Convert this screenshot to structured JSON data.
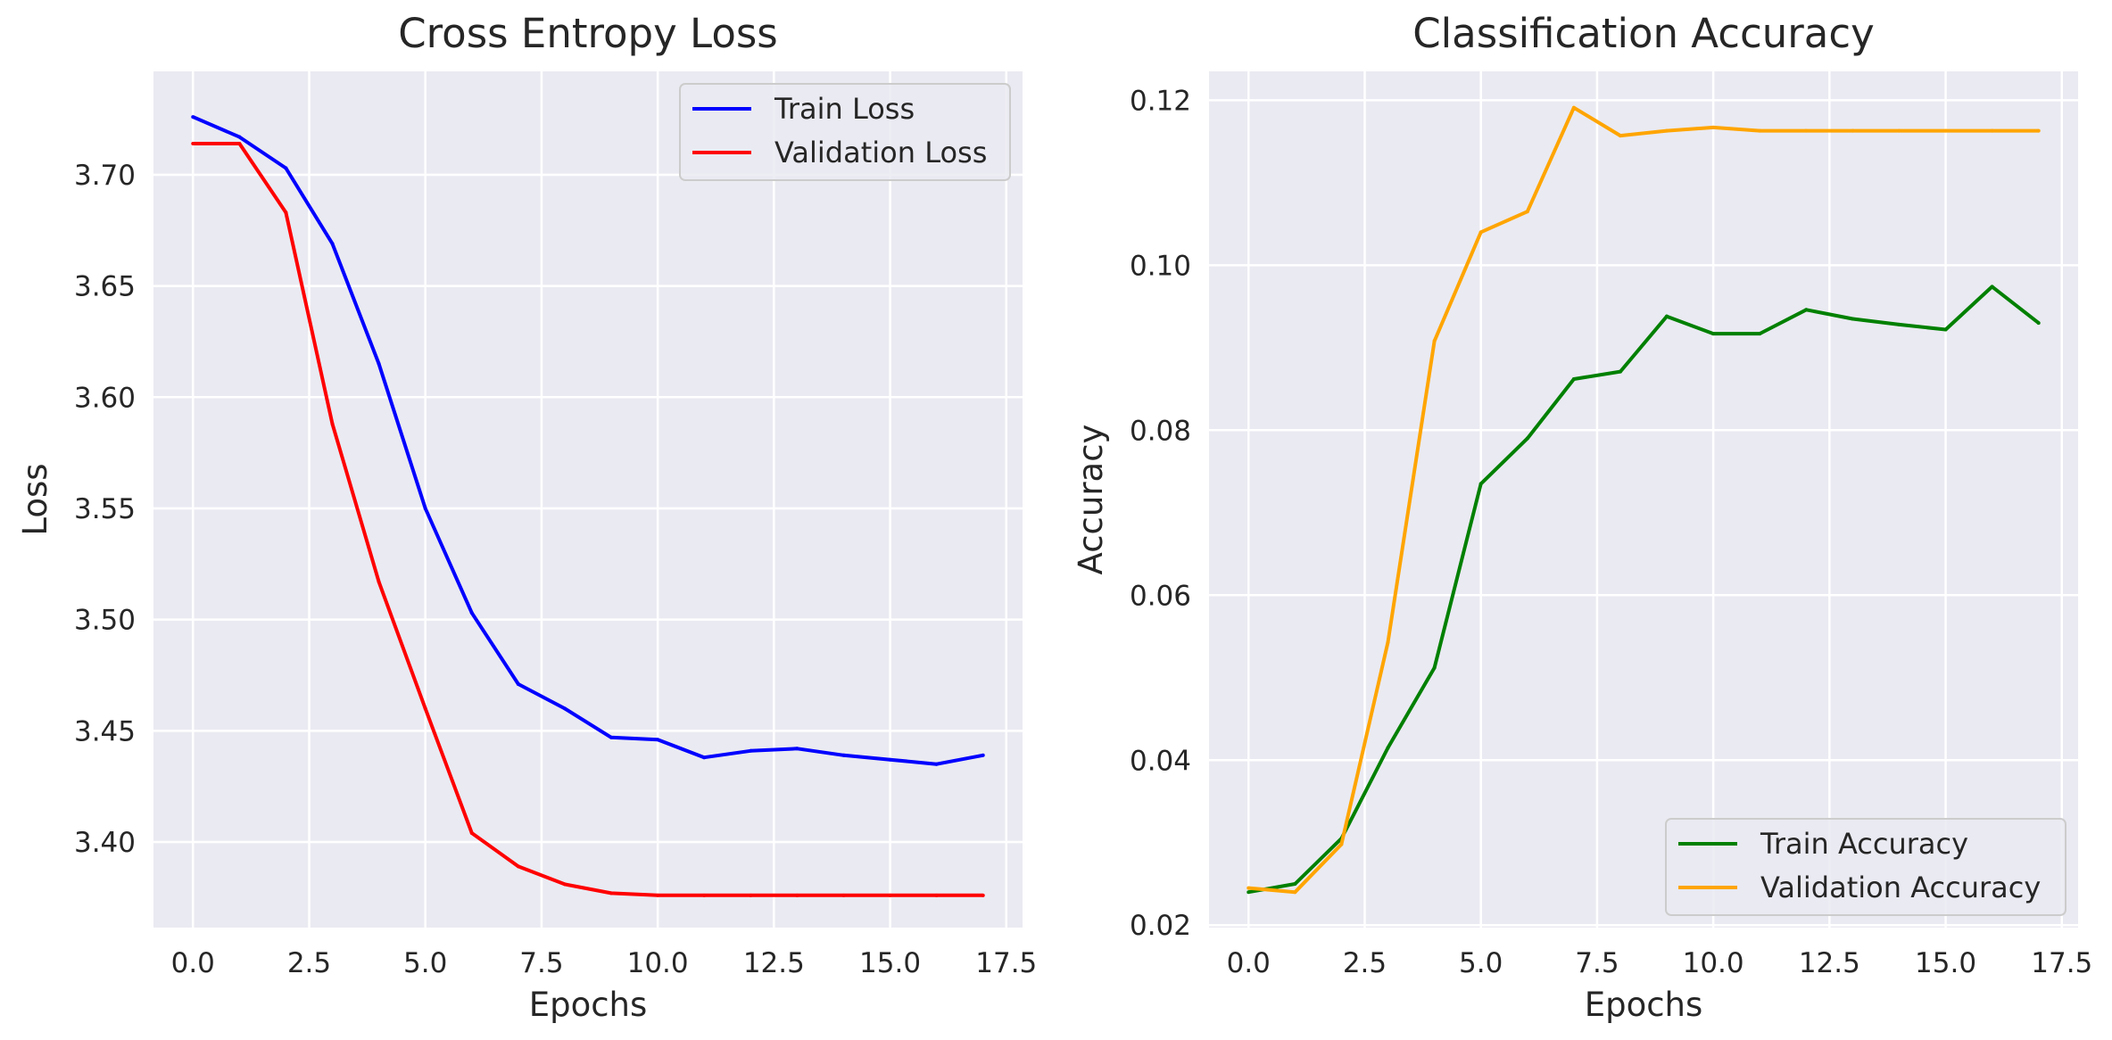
{
  "chart_data": [
    {
      "type": "line",
      "title": "Cross Entropy Loss",
      "xlabel": "Epochs",
      "ylabel": "Loss",
      "xlim": [
        -0.85,
        17.85
      ],
      "ylim": [
        3.3615,
        3.7465
      ],
      "xticks": [
        0.0,
        2.5,
        5.0,
        7.5,
        10.0,
        12.5,
        15.0,
        17.5
      ],
      "xtick_labels": [
        "0.0",
        "2.5",
        "5.0",
        "7.5",
        "10.0",
        "12.5",
        "15.0",
        "17.5"
      ],
      "yticks": [
        3.4,
        3.45,
        3.5,
        3.55,
        3.6,
        3.65,
        3.7
      ],
      "ytick_labels": [
        "3.40",
        "3.45",
        "3.50",
        "3.55",
        "3.60",
        "3.65",
        "3.70"
      ],
      "grid": true,
      "legend_position": "upper right",
      "x": [
        0,
        1,
        2,
        3,
        4,
        5,
        6,
        7,
        8,
        9,
        10,
        11,
        12,
        13,
        14,
        15,
        16,
        17
      ],
      "series": [
        {
          "name": "Train Loss",
          "color": "#0000ff",
          "values": [
            3.726,
            3.717,
            3.703,
            3.669,
            3.615,
            3.55,
            3.503,
            3.471,
            3.46,
            3.447,
            3.446,
            3.438,
            3.441,
            3.442,
            3.439,
            3.437,
            3.435,
            3.439
          ]
        },
        {
          "name": "Validation Loss",
          "color": "#ff0000",
          "values": [
            3.714,
            3.714,
            3.683,
            3.588,
            3.517,
            3.46,
            3.404,
            3.389,
            3.381,
            3.377,
            3.376,
            3.376,
            3.376,
            3.376,
            3.376,
            3.376,
            3.376,
            3.376
          ]
        }
      ]
    },
    {
      "type": "line",
      "title": "Classification Accuracy",
      "xlabel": "Epochs",
      "ylabel": "Accuracy",
      "xlim": [
        -0.85,
        17.85
      ],
      "ylim": [
        0.0197,
        0.1235
      ],
      "xticks": [
        0.0,
        2.5,
        5.0,
        7.5,
        10.0,
        12.5,
        15.0,
        17.5
      ],
      "xtick_labels": [
        "0.0",
        "2.5",
        "5.0",
        "7.5",
        "10.0",
        "12.5",
        "15.0",
        "17.5"
      ],
      "yticks": [
        0.02,
        0.04,
        0.06,
        0.08,
        0.1,
        0.12
      ],
      "ytick_labels": [
        "0.02",
        "0.04",
        "0.06",
        "0.08",
        "0.10",
        "0.12"
      ],
      "grid": true,
      "legend_position": "lower right",
      "x": [
        0,
        1,
        2,
        3,
        4,
        5,
        6,
        7,
        8,
        9,
        10,
        11,
        12,
        13,
        14,
        15,
        16,
        17
      ],
      "series": [
        {
          "name": "Train Accuracy",
          "color": "#008000",
          "values": [
            0.024,
            0.025,
            0.0305,
            0.0415,
            0.0512,
            0.0735,
            0.079,
            0.0862,
            0.0871,
            0.0938,
            0.0917,
            0.0917,
            0.0946,
            0.0935,
            0.0928,
            0.0922,
            0.0974,
            0.093
          ]
        },
        {
          "name": "Validation Accuracy",
          "color": "#ffa500",
          "values": [
            0.0245,
            0.024,
            0.0298,
            0.0543,
            0.0908,
            0.104,
            0.1065,
            0.1191,
            0.1157,
            0.1163,
            0.1167,
            0.1163,
            0.1163,
            0.1163,
            0.1163,
            0.1163,
            0.1163,
            0.1163
          ]
        }
      ]
    }
  ]
}
